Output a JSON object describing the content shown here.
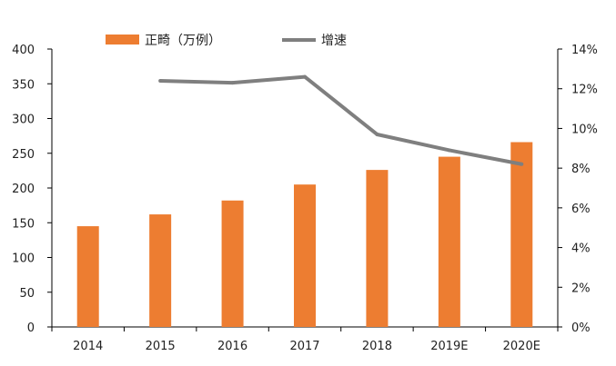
{
  "chart_data": {
    "type": "bar",
    "categories": [
      "2014",
      "2015",
      "2016",
      "2017",
      "2018",
      "2019E",
      "2020E"
    ],
    "series": [
      {
        "name": "正畸（万例）",
        "type": "bar",
        "axis": "left",
        "values": [
          145,
          162,
          182,
          205,
          226,
          245,
          266
        ]
      },
      {
        "name": "增速",
        "type": "line",
        "axis": "right",
        "values": [
          null,
          12.4,
          12.3,
          12.6,
          9.7,
          8.9,
          8.2
        ]
      }
    ],
    "y_left": {
      "min": 0,
      "max": 400,
      "ticks": [
        "0",
        "50",
        "100",
        "150",
        "200",
        "250",
        "300",
        "350",
        "400"
      ]
    },
    "y_right": {
      "min": 0,
      "max": 14,
      "ticks": [
        "0%",
        "2%",
        "4%",
        "6%",
        "8%",
        "10%",
        "12%",
        "14%"
      ]
    },
    "legend_position": "top",
    "grid": false,
    "colors": {
      "bar": "#ed7d31",
      "line": "#7f7f7f",
      "axis": "#000000"
    }
  }
}
